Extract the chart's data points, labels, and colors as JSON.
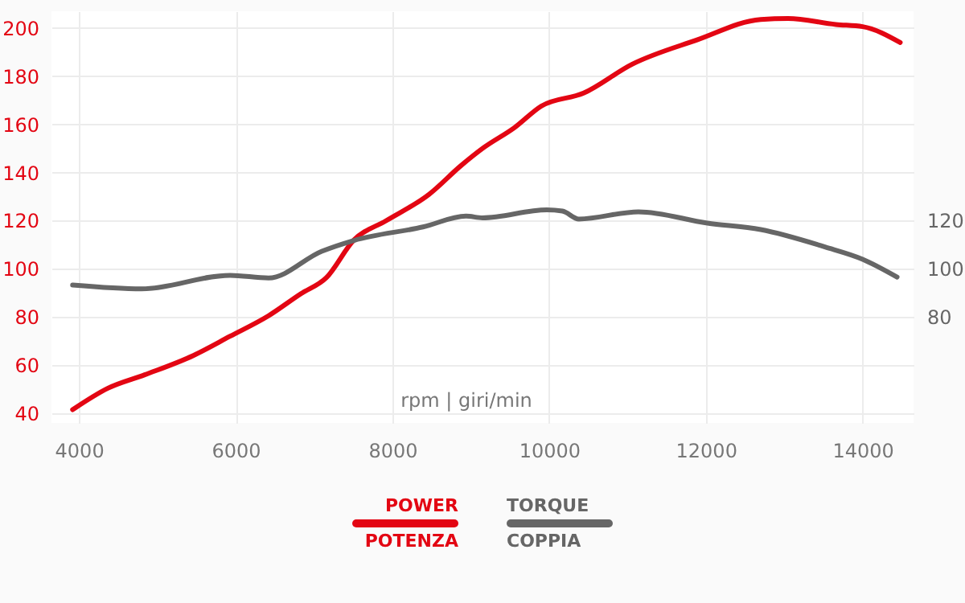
{
  "chart_data": {
    "type": "line",
    "xlabel": "rpm | giri/min",
    "xlim": [
      3650,
      14650
    ],
    "xticks": [
      4000,
      6000,
      8000,
      10000,
      12000,
      14000
    ],
    "ylim": [
      36,
      207
    ],
    "yticks": [
      40,
      60,
      80,
      100,
      120,
      140,
      160,
      180,
      200
    ],
    "y2lim": [
      36,
      207
    ],
    "y2ticks": [
      80,
      100,
      120
    ],
    "grid": true,
    "legend": "bottom",
    "series": [
      {
        "name": "POWER\nPOTENZA",
        "color": "#e30613",
        "x": [
          3920,
          4370,
          4840,
          5460,
          5930,
          6420,
          6830,
          7160,
          7510,
          7920,
          8470,
          8880,
          9150,
          9560,
          9900,
          10440,
          11060,
          11880,
          12700,
          13050,
          13660,
          14000,
          14480
        ],
        "values": [
          41.5,
          50.4,
          56,
          64,
          72,
          80.5,
          89.6,
          96.4,
          112,
          120,
          131,
          143,
          150,
          158.7,
          167.6,
          173,
          185,
          195,
          203.6,
          204,
          201.5,
          200.6,
          194
        ]
      },
      {
        "name": "TORQUE\nCOPPIA",
        "color": "#666666",
        "axis": "y2",
        "x": [
          3920,
          4800,
          5930,
          6420,
          7100,
          7510,
          8390,
          8940,
          9150,
          9970,
          10170,
          10380,
          11140,
          12020,
          12700,
          13520,
          14000,
          14440
        ],
        "values": [
          93.3,
          91.7,
          97.3,
          96.2,
          107.3,
          111.8,
          117.4,
          121.9,
          121.2,
          124.5,
          124,
          120.7,
          123.7,
          119,
          116.3,
          109.1,
          104,
          96.6
        ]
      }
    ]
  }
}
